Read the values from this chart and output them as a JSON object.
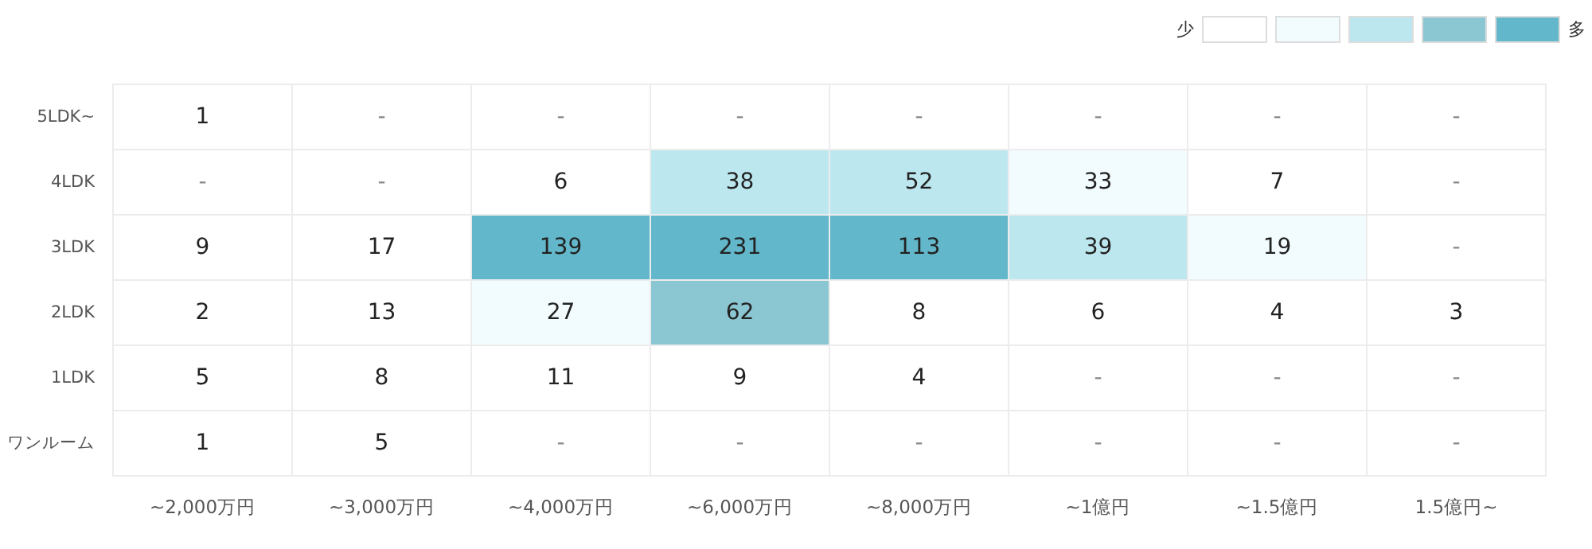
{
  "chart_data": {
    "type": "heatmap",
    "categories": [
      "~2,000万円",
      "~3,000万円",
      "~4,000万円",
      "~6,000万円",
      "~8,000万円",
      "~1億円",
      "~1.5億円",
      "1.5億円~"
    ],
    "y_categories": [
      "5LDK~",
      "4LDK",
      "3LDK",
      "2LDK",
      "1LDK",
      "ワンルーム"
    ],
    "cells": [
      [
        1,
        null,
        null,
        null,
        null,
        null,
        null,
        null
      ],
      [
        null,
        null,
        6,
        38,
        52,
        33,
        7,
        null
      ],
      [
        9,
        17,
        139,
        231,
        113,
        39,
        19,
        null
      ],
      [
        2,
        13,
        27,
        62,
        8,
        6,
        4,
        3
      ],
      [
        5,
        8,
        11,
        9,
        4,
        null,
        null,
        null
      ],
      [
        1,
        5,
        null,
        null,
        null,
        null,
        null,
        null
      ]
    ],
    "cell_labels": [
      [
        "1",
        "-",
        "-",
        "-",
        "-",
        "-",
        "-",
        "-"
      ],
      [
        "-",
        "-",
        "6",
        "38",
        "52",
        "33",
        "7",
        "-"
      ],
      [
        "9",
        "17",
        "139",
        "231",
        "113",
        "39",
        "19",
        "-"
      ],
      [
        "2",
        "13",
        "27",
        "62",
        "8",
        "6",
        "4",
        "3"
      ],
      [
        "5",
        "8",
        "11",
        "9",
        "4",
        "-",
        "-",
        "-"
      ],
      [
        "1",
        "5",
        "-",
        "-",
        "-",
        "-",
        "-",
        "-"
      ]
    ],
    "colors": [
      [
        "#ffffff",
        null,
        null,
        null,
        null,
        null,
        null,
        null
      ],
      [
        null,
        null,
        "#ffffff",
        "#bce7ef",
        "#bce7ef",
        "#f2fbfd",
        "#ffffff",
        null
      ],
      [
        "#ffffff",
        "#ffffff",
        "#62b7ca",
        "#62b7ca",
        "#62b7ca",
        "#bce7ef",
        "#f2fbfd",
        null
      ],
      [
        "#ffffff",
        "#ffffff",
        "#f2fbfd",
        "#8bc6d3",
        "#ffffff",
        "#ffffff",
        "#ffffff",
        "#ffffff"
      ],
      [
        "#ffffff",
        "#ffffff",
        "#ffffff",
        "#ffffff",
        "#ffffff",
        null,
        null,
        null
      ],
      [
        "#ffffff",
        "#ffffff",
        null,
        null,
        null,
        null,
        null,
        null
      ]
    ],
    "annotations": [
      "少",
      "多"
    ]
  }
}
